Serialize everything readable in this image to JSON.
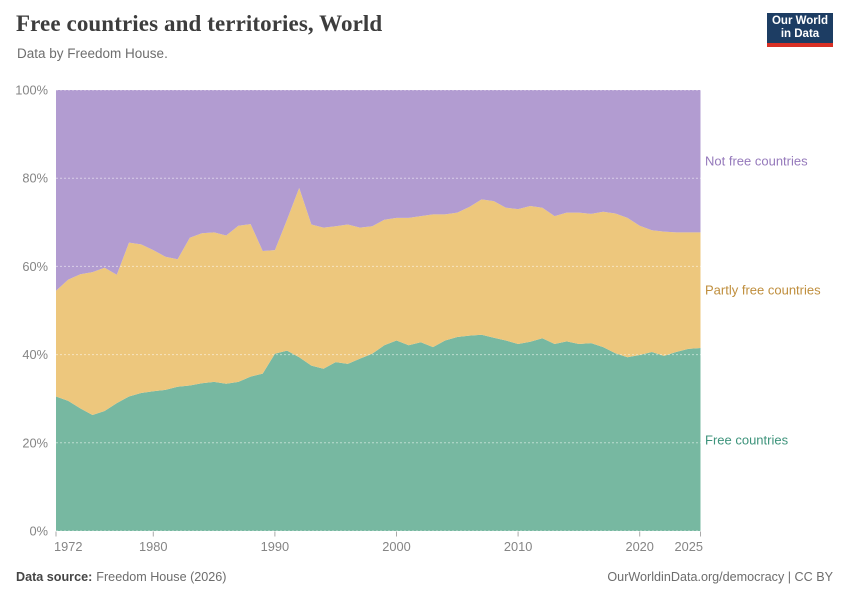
{
  "header": {
    "logo": {
      "line1": "Our World",
      "line2": "in Data",
      "bg": "#1d3d63",
      "underline": "#d93025"
    }
  },
  "footer": {
    "source_label": "Data source:",
    "source_value": "Freedom House (2026)",
    "credit": "OurWorldinData.org/democracy | CC BY"
  },
  "chart_data": {
    "type": "area",
    "stacked": true,
    "title": "Free countries and territories, World",
    "subtitle": "Data by Freedom House.",
    "unit": "%",
    "xlabel": "",
    "ylabel": "",
    "ylim": [
      0,
      100
    ],
    "grid": true,
    "legend_position": "right",
    "yticks": [
      "0%",
      "20%",
      "40%",
      "60%",
      "80%",
      "100%"
    ],
    "xticks": [
      1972,
      1980,
      1990,
      2000,
      2010,
      2020,
      2025
    ],
    "x": [
      1972,
      1973,
      1974,
      1975,
      1976,
      1977,
      1978,
      1979,
      1980,
      1981,
      1982,
      1983,
      1984,
      1985,
      1986,
      1987,
      1988,
      1989,
      1990,
      1991,
      1992,
      1993,
      1994,
      1995,
      1996,
      1997,
      1998,
      1999,
      2000,
      2001,
      2002,
      2003,
      2004,
      2005,
      2006,
      2007,
      2008,
      2009,
      2010,
      2011,
      2012,
      2013,
      2014,
      2015,
      2016,
      2017,
      2018,
      2019,
      2020,
      2021,
      2022,
      2023,
      2024,
      2025
    ],
    "series": [
      {
        "name": "Free countries",
        "color": "#77b8a1",
        "label_color": "#3d937b",
        "values": [
          30.5,
          29.5,
          27.8,
          26.3,
          27.2,
          29.0,
          30.5,
          31.3,
          31.7,
          32.0,
          32.7,
          33.0,
          33.5,
          33.8,
          33.4,
          33.8,
          35.0,
          35.7,
          40.2,
          40.9,
          39.4,
          37.5,
          36.8,
          38.3,
          37.9,
          39.1,
          40.2,
          42.1,
          43.2,
          42.1,
          42.8,
          41.7,
          43.2,
          44.0,
          44.3,
          44.5,
          43.8,
          43.2,
          42.4,
          42.9,
          43.7,
          42.4,
          43.0,
          42.4,
          42.6,
          41.7,
          40.3,
          39.4,
          39.9,
          40.6,
          39.7,
          40.6,
          41.3,
          41.5
        ]
      },
      {
        "name": "Partly free countries",
        "color": "#edc77d",
        "label_color": "#bf8e3d",
        "values": [
          24.0,
          27.5,
          30.4,
          32.4,
          32.5,
          29.1,
          34.9,
          33.7,
          32.0,
          30.2,
          28.9,
          33.5,
          34.0,
          33.9,
          33.6,
          35.4,
          34.6,
          27.8,
          23.5,
          29.7,
          38.4,
          32.0,
          32.0,
          30.8,
          31.6,
          29.7,
          28.9,
          28.5,
          27.8,
          28.9,
          28.6,
          30.1,
          28.6,
          28.2,
          29.2,
          30.7,
          31.0,
          30.1,
          30.6,
          30.8,
          29.6,
          29.0,
          29.2,
          29.8,
          29.3,
          30.7,
          31.7,
          31.6,
          29.3,
          27.6,
          28.2,
          27.1,
          26.4,
          26.2
        ]
      },
      {
        "name": "Not free countries",
        "color": "#b29cd1",
        "label_color": "#9579bb",
        "values": [
          45.5,
          43.0,
          41.8,
          41.3,
          40.3,
          41.9,
          34.6,
          35.0,
          36.3,
          37.8,
          38.4,
          33.5,
          32.5,
          32.3,
          33.0,
          30.8,
          30.4,
          36.5,
          36.3,
          29.4,
          22.2,
          30.5,
          31.2,
          30.9,
          30.5,
          31.2,
          30.9,
          29.4,
          29.0,
          29.0,
          28.6,
          28.2,
          28.2,
          27.8,
          26.5,
          24.8,
          25.2,
          26.7,
          27.0,
          26.3,
          26.7,
          28.6,
          27.8,
          27.8,
          28.1,
          27.6,
          28.0,
          29.0,
          30.8,
          31.8,
          32.1,
          32.3,
          32.3,
          32.3
        ]
      }
    ]
  }
}
